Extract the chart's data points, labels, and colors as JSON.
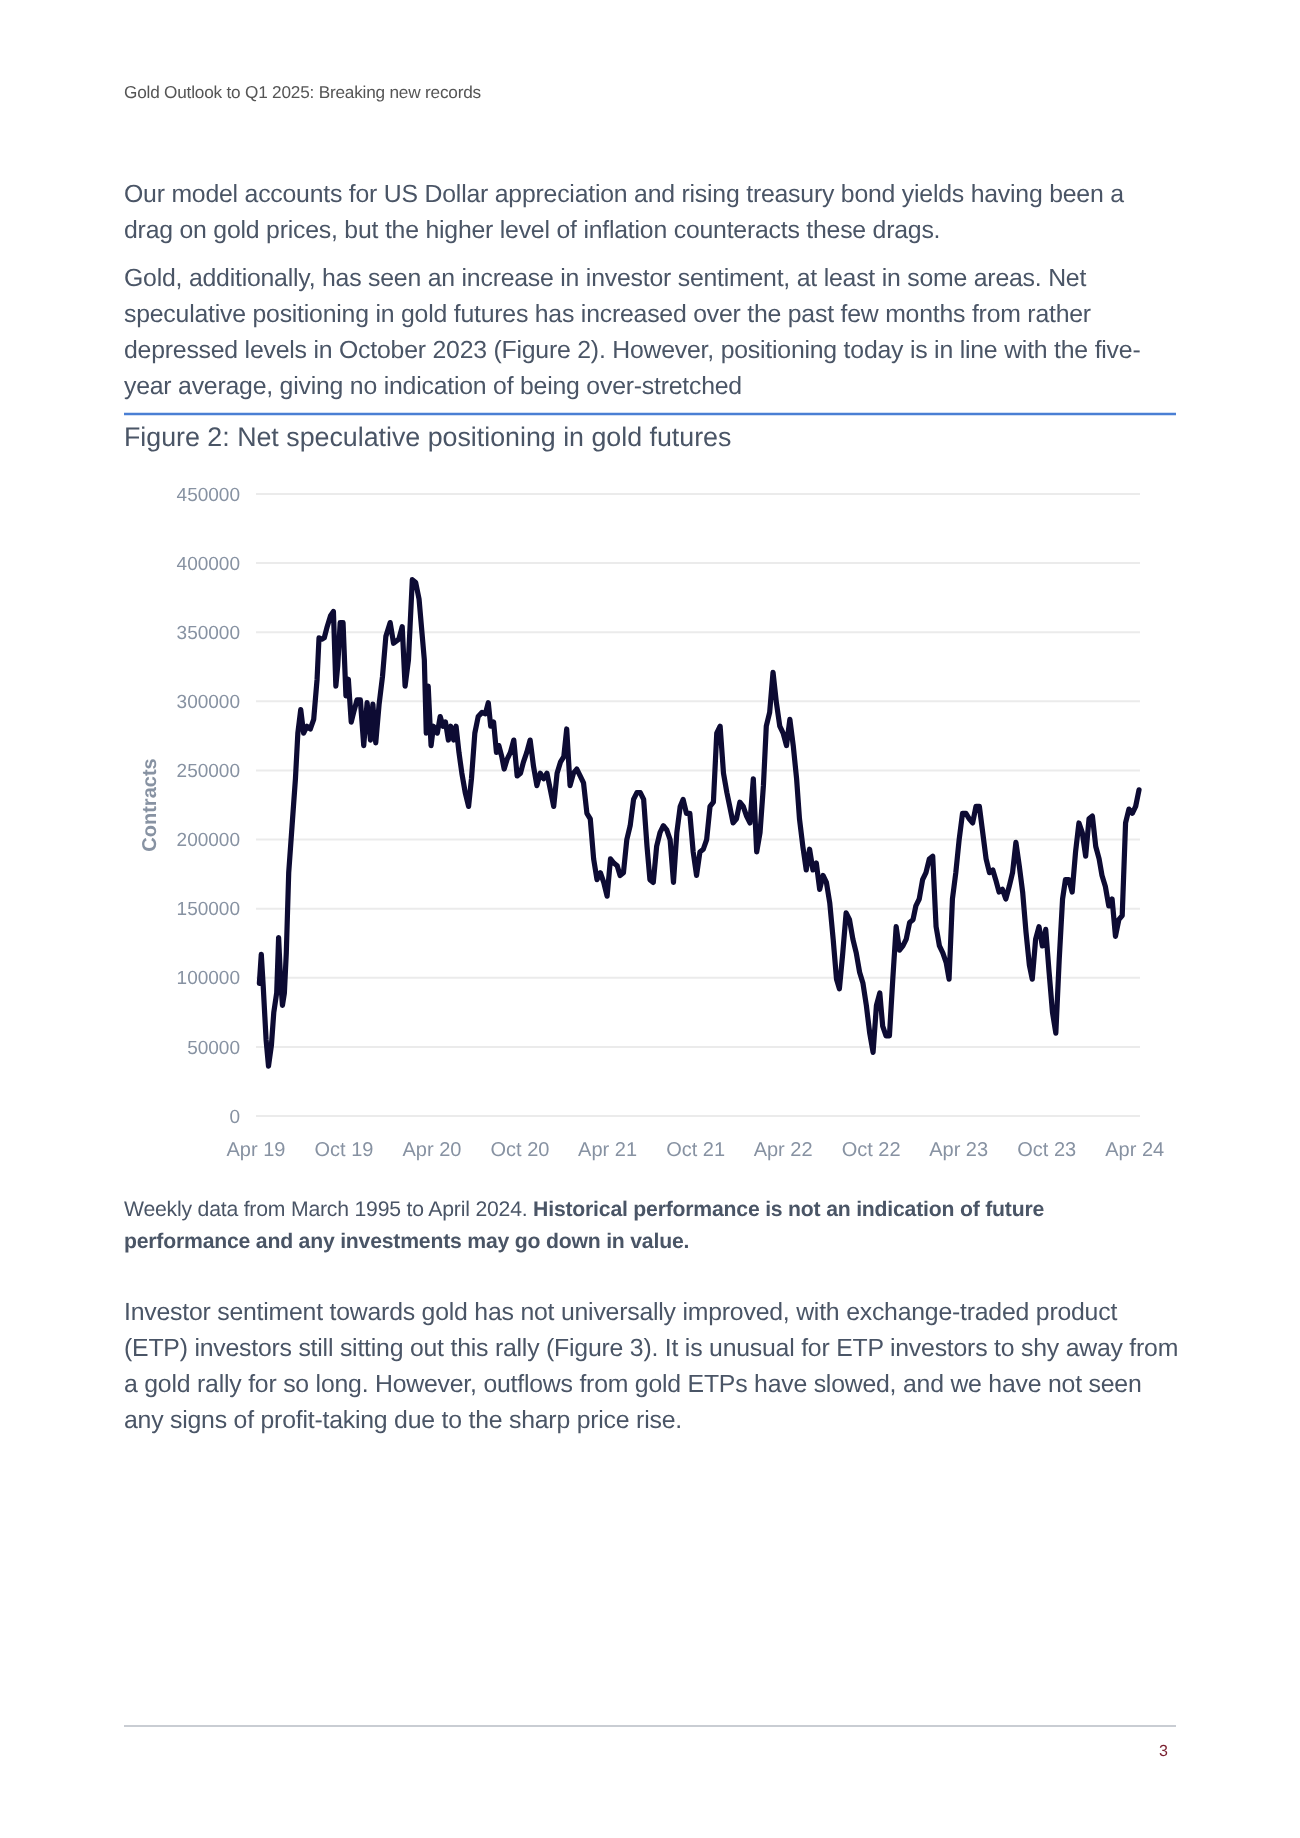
{
  "chart_data": {
    "type": "line",
    "title": "Figure 2: Net speculative positioning in gold futures",
    "ylabel": "Contracts",
    "annotations": [
      "Gold Outlook to Q1 2025: Breaking new records",
      "Our model accounts for US Dollar appreciation and rising treasury bond yields having been a drag on gold prices, but the higher level of inflation counteracts these drags.",
      "Gold, additionally, has seen an increase in investor sentiment, at least in some areas. Net speculative positioning in gold futures has increased over the past few months from rather depressed levels in October 2023 (Figure 2). However, positioning today is in line with the five-year average, giving no indication of being over-stretched",
      "Weekly data from March 1995 to April 2024.",
      "Historical performance is not an indication of future performance and any investments may go down in value.",
      "Investor sentiment towards gold has not universally improved, with exchange-traded product (ETP) investors still sitting out this rally (Figure 3). It is unusual for ETP investors to shy away from a gold rally for so long. However, outflows from gold ETPs have slowed, and we have not seen any signs of profit-taking due to the sharp price rise.",
      "3"
    ],
    "xlim": [
      "2019-04-01",
      "2024-04-12"
    ],
    "xticks": [
      {
        "value": "2019-04-01",
        "label": "Apr 19"
      },
      {
        "value": "2019-10-01",
        "label": "Oct 19"
      },
      {
        "value": "2020-04-01",
        "label": "Apr 20"
      },
      {
        "value": "2020-10-01",
        "label": "Oct 20"
      },
      {
        "value": "2021-04-01",
        "label": "Apr 21"
      },
      {
        "value": "2021-10-01",
        "label": "Oct 21"
      },
      {
        "value": "2022-04-01",
        "label": "Apr 22"
      },
      {
        "value": "2022-10-01",
        "label": "Oct 22"
      },
      {
        "value": "2023-04-01",
        "label": "Apr 23"
      },
      {
        "value": "2023-10-01",
        "label": "Oct 23"
      },
      {
        "value": "2024-04-01",
        "label": "Apr 24"
      }
    ],
    "ylim": [
      0,
      450000
    ],
    "yticks": [
      0,
      50000,
      100000,
      150000,
      200000,
      250000,
      300000,
      350000,
      400000,
      450000
    ],
    "grid": "y",
    "series": [
      {
        "color": "#0d0b33",
        "x": [
          "2019-04-08",
          "2019-04-12",
          "2019-04-16",
          "2019-04-22",
          "2019-04-27",
          "2019-05-03",
          "2019-05-08",
          "2019-05-14",
          "2019-05-18",
          "2019-05-22",
          "2019-05-26",
          "2019-05-30",
          "2019-06-03",
          "2019-06-08",
          "2019-06-15",
          "2019-06-22",
          "2019-06-27",
          "2019-07-03",
          "2019-07-09",
          "2019-07-16",
          "2019-07-23",
          "2019-07-30",
          "2019-08-06",
          "2019-08-10",
          "2019-08-16",
          "2019-08-21",
          "2019-08-27",
          "2019-09-03",
          "2019-09-09",
          "2019-09-14",
          "2019-09-18",
          "2019-09-23",
          "2019-09-29",
          "2019-10-05",
          "2019-10-10",
          "2019-10-16",
          "2019-10-21",
          "2019-10-28",
          "2019-11-04",
          "2019-11-11",
          "2019-11-18",
          "2019-11-25",
          "2019-11-30",
          "2019-12-06",
          "2019-12-13",
          "2019-12-20",
          "2019-12-27",
          "2020-01-05",
          "2020-01-12",
          "2020-01-23",
          "2020-01-30",
          "2020-02-05",
          "2020-02-12",
          "2020-02-20",
          "2020-02-27",
          "2020-03-05",
          "2020-03-10",
          "2020-03-16",
          "2020-03-20",
          "2020-03-24",
          "2020-03-30",
          "2020-04-04",
          "2020-04-12",
          "2020-04-18",
          "2020-04-24",
          "2020-04-29",
          "2020-05-05",
          "2020-05-10",
          "2020-05-16",
          "2020-05-21",
          "2020-05-27",
          "2020-06-02",
          "2020-06-09",
          "2020-06-16",
          "2020-06-22",
          "2020-06-29",
          "2020-07-06",
          "2020-07-14",
          "2020-07-21",
          "2020-07-27",
          "2020-08-01",
          "2020-08-07",
          "2020-08-13",
          "2020-08-18",
          "2020-08-24",
          "2020-08-29",
          "2020-09-04",
          "2020-09-11",
          "2020-09-18",
          "2020-09-25",
          "2020-10-02",
          "2020-10-08",
          "2020-10-15",
          "2020-10-22",
          "2020-10-29",
          "2020-11-05",
          "2020-11-12",
          "2020-11-19",
          "2020-11-26",
          "2020-12-03",
          "2020-12-10",
          "2020-12-17",
          "2020-12-24",
          "2020-12-31",
          "2021-01-06",
          "2021-01-13",
          "2021-01-20",
          "2021-01-27",
          "2021-02-03",
          "2021-02-10",
          "2021-02-17",
          "2021-02-24",
          "2021-03-03",
          "2021-03-10",
          "2021-03-17",
          "2021-03-24",
          "2021-03-31",
          "2021-04-07",
          "2021-04-14",
          "2021-04-21",
          "2021-04-27",
          "2021-05-04",
          "2021-05-11",
          "2021-05-18",
          "2021-05-25",
          "2021-06-01",
          "2021-06-08",
          "2021-06-15",
          "2021-06-22",
          "2021-06-28",
          "2021-07-05",
          "2021-07-12",
          "2021-07-19",
          "2021-07-26",
          "2021-08-02",
          "2021-08-09",
          "2021-08-16",
          "2021-08-23",
          "2021-08-30",
          "2021-09-05",
          "2021-09-12",
          "2021-09-19",
          "2021-09-26",
          "2021-10-03",
          "2021-10-10",
          "2021-10-17",
          "2021-10-24",
          "2021-10-31",
          "2021-11-07",
          "2021-11-14",
          "2021-11-21",
          "2021-11-28",
          "2021-12-05",
          "2021-12-11",
          "2021-12-18",
          "2021-12-25",
          "2022-01-01",
          "2022-01-08",
          "2022-01-15",
          "2022-01-22",
          "2022-01-29",
          "2022-02-05",
          "2022-02-12",
          "2022-02-19",
          "2022-02-25",
          "2022-03-04",
          "2022-03-11",
          "2022-03-18",
          "2022-03-25",
          "2022-04-01",
          "2022-04-08",
          "2022-04-15",
          "2022-04-22",
          "2022-04-29",
          "2022-05-05",
          "2022-05-12",
          "2022-05-19",
          "2022-05-26",
          "2022-06-02",
          "2022-06-09",
          "2022-06-16",
          "2022-06-23",
          "2022-06-30",
          "2022-07-07",
          "2022-07-14",
          "2022-07-21",
          "2022-07-27",
          "2022-08-03",
          "2022-08-10",
          "2022-08-17",
          "2022-08-24",
          "2022-08-31",
          "2022-09-07",
          "2022-09-14",
          "2022-09-21",
          "2022-09-28",
          "2022-10-05",
          "2022-10-12",
          "2022-10-19",
          "2022-10-25",
          "2022-11-01",
          "2022-11-08",
          "2022-11-15",
          "2022-11-22",
          "2022-11-29",
          "2022-12-06",
          "2022-12-13",
          "2022-12-20",
          "2022-12-27",
          "2023-01-02",
          "2023-01-09",
          "2023-01-16",
          "2023-01-23",
          "2023-01-30",
          "2023-02-06",
          "2023-02-13",
          "2023-02-20",
          "2023-02-27",
          "2023-03-06",
          "2023-03-12",
          "2023-03-19",
          "2023-03-26",
          "2023-04-02",
          "2023-04-09",
          "2023-04-16",
          "2023-04-23",
          "2023-04-30",
          "2023-05-07",
          "2023-05-14",
          "2023-05-21",
          "2023-05-28",
          "2023-06-04",
          "2023-06-11",
          "2023-06-17",
          "2023-06-24",
          "2023-07-01",
          "2023-07-08",
          "2023-07-15",
          "2023-07-22",
          "2023-07-29",
          "2023-08-05",
          "2023-08-12",
          "2023-08-19",
          "2023-08-26",
          "2023-09-01",
          "2023-09-08",
          "2023-09-15",
          "2023-09-22",
          "2023-09-29",
          "2023-10-06",
          "2023-10-13",
          "2023-10-20",
          "2023-10-27",
          "2023-11-03",
          "2023-11-09",
          "2023-11-16",
          "2023-11-23",
          "2023-11-30",
          "2023-12-07",
          "2023-12-14",
          "2023-12-21",
          "2023-12-28",
          "2024-01-04",
          "2024-01-11",
          "2024-01-18",
          "2024-01-24",
          "2024-01-31",
          "2024-02-07",
          "2024-02-14",
          "2024-02-21",
          "2024-02-28",
          "2024-03-06",
          "2024-03-13",
          "2024-03-20",
          "2024-03-27",
          "2024-04-03",
          "2024-04-10"
        ],
        "values": [
          96000,
          117000,
          94000,
          55000,
          36000,
          51000,
          75000,
          89000,
          129000,
          99000,
          80000,
          89000,
          118000,
          176000,
          210000,
          244000,
          277000,
          294000,
          277000,
          282000,
          280000,
          287000,
          316000,
          346000,
          345000,
          346000,
          354000,
          362000,
          365000,
          311000,
          326000,
          357000,
          357000,
          304000,
          316000,
          285000,
          292000,
          301000,
          301000,
          268000,
          299000,
          272000,
          298000,
          270000,
          298000,
          318000,
          347000,
          357000,
          342000,
          345000,
          354000,
          311000,
          330000,
          388000,
          386000,
          374000,
          354000,
          330000,
          277000,
          311000,
          268000,
          282000,
          277000,
          289000,
          282000,
          285000,
          272000,
          282000,
          272000,
          282000,
          263000,
          248000,
          234000,
          224000,
          244000,
          277000,
          289000,
          292000,
          291000,
          299000,
          282000,
          285000,
          263000,
          268000,
          260000,
          251000,
          258000,
          263000,
          272000,
          246000,
          248000,
          256000,
          263000,
          272000,
          253000,
          239000,
          248000,
          244000,
          248000,
          236000,
          224000,
          248000,
          256000,
          260000,
          280000,
          239000,
          248000,
          251000,
          246000,
          241000,
          219000,
          215000,
          186000,
          171000,
          176000,
          169000,
          159000,
          186000,
          183000,
          181000,
          174000,
          176000,
          200000,
          210000,
          229000,
          234000,
          234000,
          229000,
          195000,
          171000,
          169000,
          195000,
          205000,
          210000,
          207000,
          200000,
          169000,
          205000,
          224000,
          229000,
          219000,
          219000,
          191000,
          174000,
          191000,
          193000,
          200000,
          224000,
          227000,
          277000,
          282000,
          248000,
          234000,
          224000,
          212000,
          215000,
          227000,
          224000,
          217000,
          212000,
          244000,
          191000,
          205000,
          239000,
          282000,
          292000,
          321000,
          299000,
          282000,
          277000,
          268000,
          287000,
          268000,
          244000,
          215000,
          195000,
          178000,
          193000,
          178000,
          183000,
          164000,
          174000,
          169000,
          154000,
          128000,
          99000,
          92000,
          118000,
          147000,
          142000,
          128000,
          118000,
          104000,
          96000,
          80000,
          60000,
          46000,
          80000,
          89000,
          65000,
          58000,
          58000,
          99000,
          137000,
          120000,
          123000,
          128000,
          140000,
          142000,
          152000,
          157000,
          171000,
          176000,
          186000,
          188000,
          137000,
          123000,
          118000,
          111000,
          99000,
          157000,
          176000,
          200000,
          219000,
          219000,
          215000,
          212000,
          224000,
          224000,
          205000,
          186000,
          176000,
          178000,
          171000,
          162000,
          164000,
          157000,
          166000,
          176000,
          198000,
          181000,
          162000,
          133000,
          109000,
          99000,
          128000,
          137000,
          123000,
          135000,
          104000,
          75000,
          60000,
          113000,
          157000,
          171000,
          171000,
          162000,
          191000,
          212000,
          205000,
          188000,
          215000,
          217000,
          195000,
          186000,
          174000,
          166000,
          152000,
          157000,
          130000,
          142000,
          145000,
          212000,
          222000,
          219000,
          224000,
          236000
        ]
      }
    ]
  }
}
